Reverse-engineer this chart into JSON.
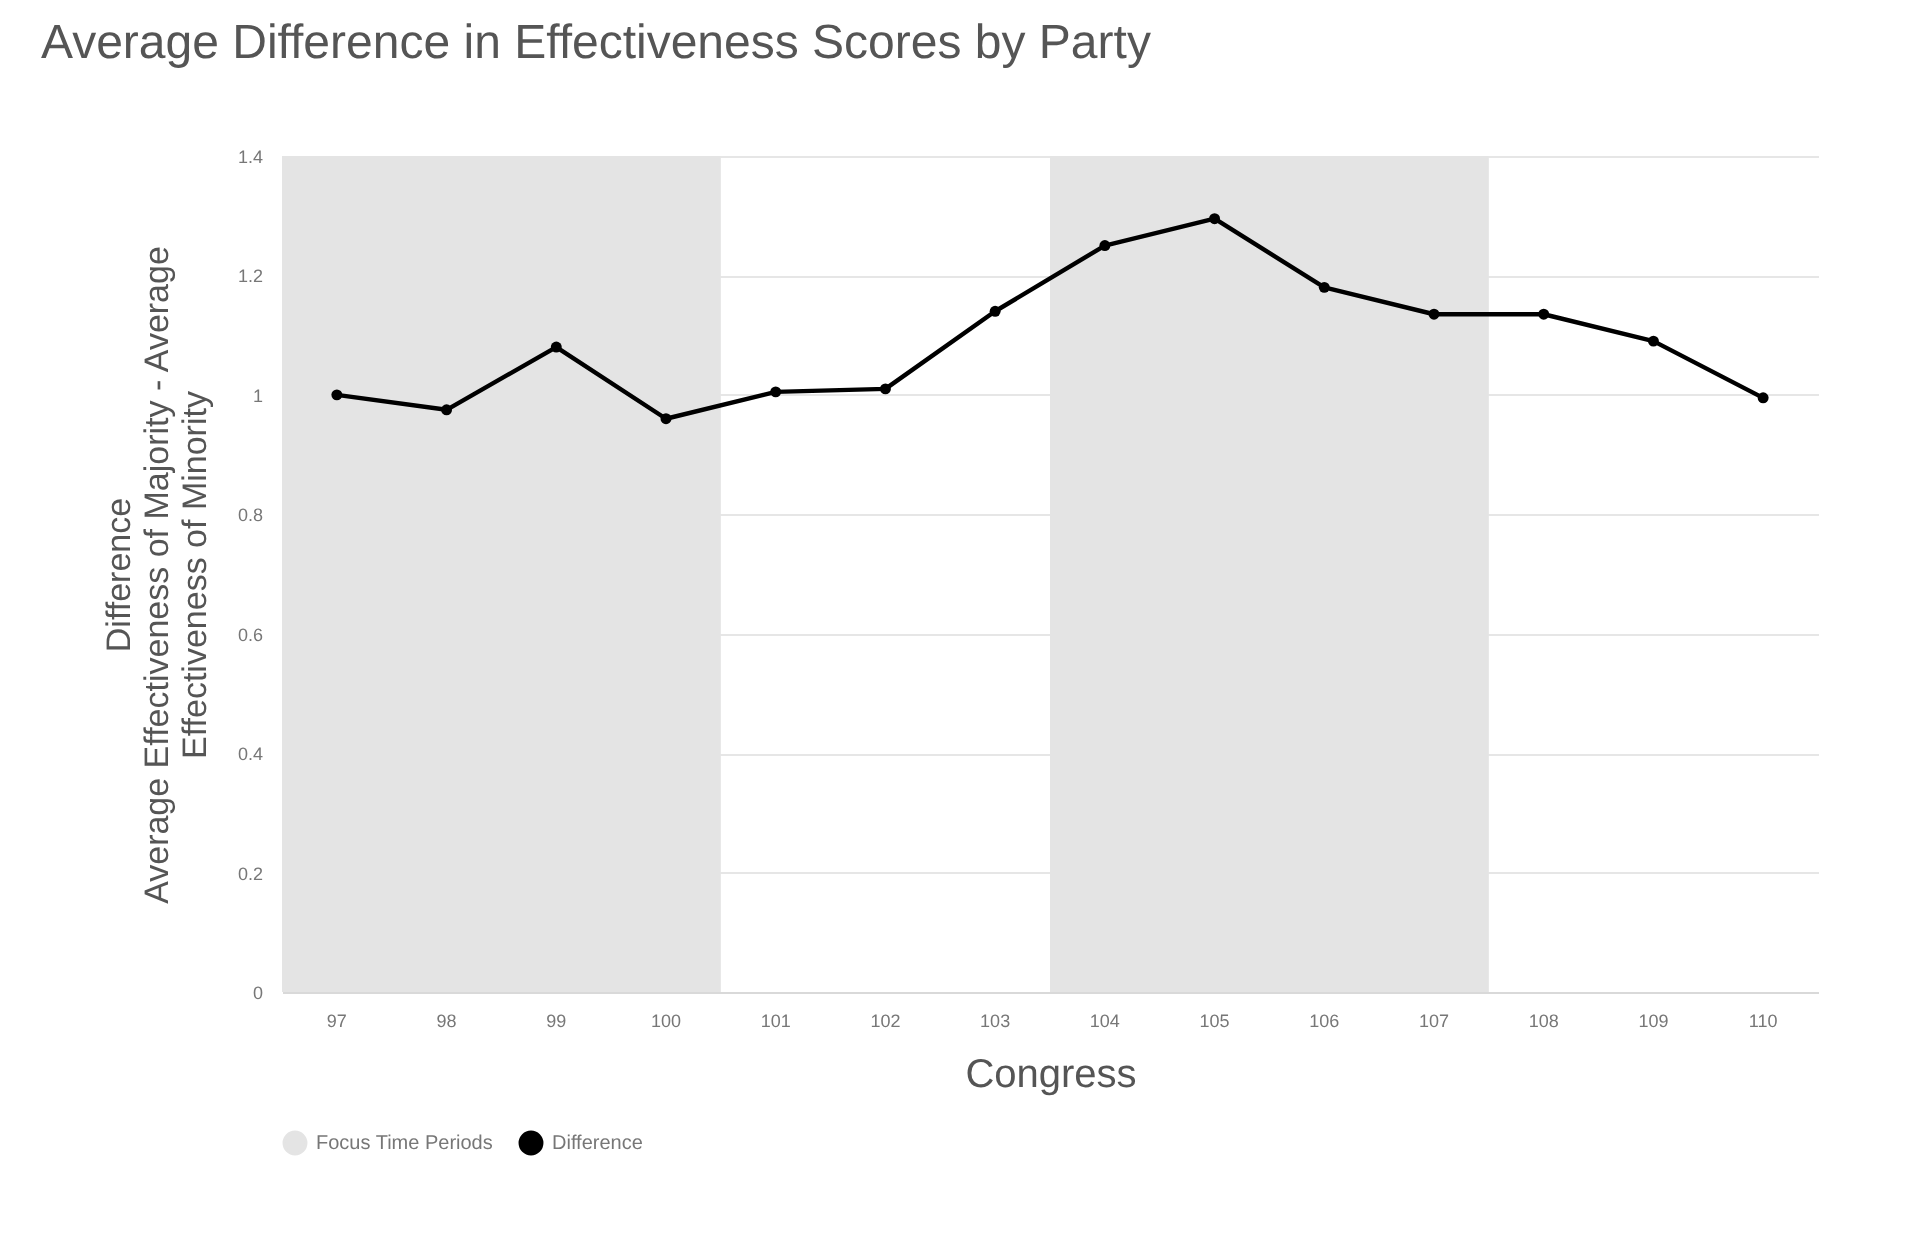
{
  "chart_data": {
    "type": "line",
    "title": "Average Difference in Effectiveness Scores by Party",
    "xlabel": "Congress",
    "ylabel": "Difference\nAverage Effectiveness of Majority - Average\nEffectiveness of Minority",
    "categories": [
      "97",
      "98",
      "99",
      "100",
      "101",
      "102",
      "103",
      "104",
      "105",
      "106",
      "107",
      "108",
      "109",
      "110"
    ],
    "series": [
      {
        "name": "Difference",
        "color": "#000000",
        "values": [
          1.0,
          0.975,
          1.08,
          0.96,
          1.005,
          1.01,
          1.14,
          1.25,
          1.295,
          1.18,
          1.135,
          1.135,
          1.09,
          0.995
        ]
      }
    ],
    "bands": [
      {
        "axis": "x",
        "from": "97",
        "to": "100",
        "label": "Focus Time Periods",
        "color": "#e4e4e4"
      },
      {
        "axis": "x",
        "from": "104",
        "to": "107",
        "color": "#e4e4e4"
      }
    ],
    "ylim": [
      0,
      1.4
    ],
    "yticks": [
      0,
      0.2,
      0.4,
      0.6,
      0.8,
      1,
      1.2,
      1.4
    ],
    "grid": "y",
    "legend": "bottom",
    "marker": "circle",
    "line_style": "solid"
  }
}
